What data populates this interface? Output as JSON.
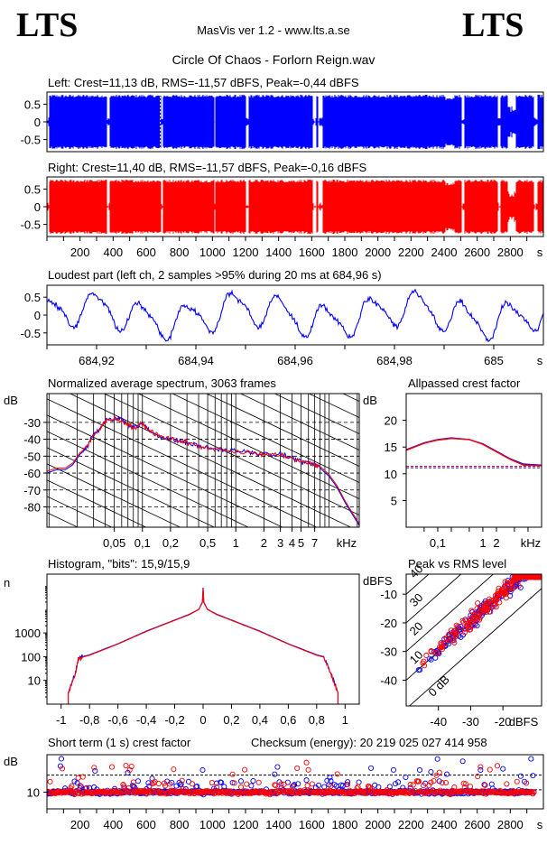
{
  "header": {
    "logo_left": "LTS",
    "logo_right": "LTS",
    "app": "MasVis ver 1.2 - www.lts.a.se",
    "file": "Circle Of Chaos - Forlorn Reign.wav"
  },
  "colors": {
    "left": "#0000ff",
    "right": "#ff0000"
  },
  "chart_data": [
    {
      "type": "line",
      "title": "Left: Crest=11,13 dB, RMS=-11,57 dBFS, Peak=-0,44 dBFS",
      "yticks": [
        "0.5",
        "0",
        "-0.5"
      ],
      "ylim": [
        -1,
        1
      ],
      "xlim": [
        0,
        3000
      ],
      "cursor_x": 684.96,
      "gaps": [
        [
          0,
          8
        ],
        [
          358,
          372
        ],
        [
          685,
          698
        ],
        [
          1005,
          1012
        ],
        [
          1195,
          1215
        ],
        [
          1600,
          1625
        ],
        [
          1635,
          1660
        ],
        [
          2500,
          2515
        ],
        [
          2720,
          2735
        ],
        [
          2940,
          2960
        ]
      ],
      "series": [
        {
          "name": "Left",
          "color": "#0000ff"
        }
      ]
    },
    {
      "type": "line",
      "title": "Right: Crest=11,40 dB, RMS=-11,57 dBFS, Peak=-0,16 dBFS",
      "yticks": [
        "0.5",
        "0",
        "-0.5"
      ],
      "ylim": [
        -1,
        1
      ],
      "xlim": [
        0,
        3000
      ],
      "x_ticks": [
        "200",
        "400",
        "600",
        "800",
        "1000",
        "1200",
        "1400",
        "1600",
        "1800",
        "2000",
        "2200",
        "2400",
        "2600",
        "2800"
      ],
      "x_unit": "s",
      "series": [
        {
          "name": "Right",
          "color": "#ff0000"
        }
      ]
    },
    {
      "type": "line",
      "title": "Loudest part (left  ch, 2 samples >95% during 20 ms at 684,96 s)",
      "yticks": [
        "0.5",
        "0",
        "-0.5"
      ],
      "ylim": [
        -1,
        1
      ],
      "xlim": [
        684.91,
        685.01
      ],
      "x_ticks": [
        "684,92",
        "684,94",
        "684,96",
        "684,98",
        "685"
      ],
      "x_tick_values": [
        684.92,
        684.94,
        684.96,
        684.98,
        685.0
      ],
      "x_unit": "s",
      "series": [
        {
          "name": "Left",
          "color": "#0000ff"
        }
      ]
    },
    {
      "type": "line",
      "title": "Normalized average spectrum, 3063 frames",
      "ylabel": "dB",
      "yticks": [
        "-30",
        "-40",
        "-50",
        "-60",
        "-70",
        "-80"
      ],
      "ytick_values": [
        -30,
        -40,
        -50,
        -60,
        -70,
        -80
      ],
      "ylim": [
        -92,
        -13
      ],
      "xlim": [
        0.0095,
        21
      ],
      "xscale": "log",
      "x_ticks": [
        "0,05",
        "0,1",
        "0,2",
        "0,5",
        "1",
        "2",
        "3",
        "4",
        "5",
        "7"
      ],
      "x_tick_values": [
        0.05,
        0.1,
        0.2,
        0.5,
        1,
        2,
        3,
        4,
        5,
        7
      ],
      "x_unit": "kHz",
      "series": [
        {
          "name": "Left",
          "color": "#0000ff",
          "x": [
            0.0095,
            0.012,
            0.015,
            0.018,
            0.022,
            0.026,
            0.03,
            0.035,
            0.04,
            0.05,
            0.06,
            0.07,
            0.08,
            0.1,
            0.12,
            0.15,
            0.2,
            0.25,
            0.3,
            0.4,
            0.5,
            0.7,
            1,
            1.5,
            2,
            3,
            4,
            5,
            6,
            7,
            8,
            10,
            12,
            15,
            21
          ],
          "y": [
            -60,
            -58,
            -58,
            -55,
            -48,
            -44,
            -37,
            -34,
            -29,
            -28,
            -28,
            -31,
            -33,
            -31,
            -35,
            -38,
            -40,
            -41,
            -42,
            -44,
            -45,
            -46,
            -47,
            -48,
            -49,
            -49,
            -51,
            -53,
            -54,
            -55,
            -57,
            -62,
            -68,
            -78,
            -91
          ]
        },
        {
          "name": "Right",
          "color": "#ff0000",
          "x": [
            0.0095,
            0.012,
            0.015,
            0.018,
            0.022,
            0.026,
            0.03,
            0.035,
            0.04,
            0.05,
            0.06,
            0.07,
            0.08,
            0.1,
            0.12,
            0.15,
            0.2,
            0.25,
            0.3,
            0.4,
            0.5,
            0.7,
            1,
            1.5,
            2,
            3,
            4,
            5,
            6,
            7,
            8,
            10,
            12,
            15,
            21
          ],
          "y": [
            -59,
            -57,
            -57,
            -54,
            -47,
            -44,
            -37,
            -34,
            -29,
            -28,
            -29,
            -31,
            -33,
            -31,
            -35,
            -38,
            -40,
            -41,
            -42,
            -44,
            -45,
            -46,
            -48,
            -48,
            -49,
            -49,
            -51,
            -53,
            -54,
            -55,
            -56,
            -61,
            -67,
            -77,
            -90
          ]
        }
      ]
    },
    {
      "type": "line",
      "title": "Allpassed crest factor",
      "ylabel": "dB",
      "yticks": [
        "20",
        "15",
        "10",
        "5"
      ],
      "ytick_values": [
        20,
        15,
        10,
        5
      ],
      "ylim": [
        0,
        25
      ],
      "xlim": [
        0.02,
        20
      ],
      "xscale": "log",
      "x_ticks": [
        "0,1",
        "1",
        "2"
      ],
      "x_tick_values": [
        0.1,
        1,
        2
      ],
      "x_unit": "kHz",
      "reference_lines": [
        {
          "y": 11.13,
          "color": "#0000ff"
        },
        {
          "y": 11.4,
          "color": "#ff0000"
        }
      ],
      "series": [
        {
          "name": "Left",
          "color": "#0000ff",
          "x": [
            0.02,
            0.05,
            0.1,
            0.2,
            0.5,
            1,
            2,
            4,
            8,
            20
          ],
          "y": [
            14.5,
            15.8,
            16.4,
            16.7,
            16.4,
            15.6,
            14.2,
            12.8,
            11.8,
            11.6
          ]
        },
        {
          "name": "Right",
          "color": "#ff0000",
          "x": [
            0.02,
            0.05,
            0.1,
            0.2,
            0.5,
            1,
            2,
            4,
            8,
            20
          ],
          "y": [
            14.4,
            15.7,
            16.3,
            16.6,
            16.4,
            15.5,
            14.1,
            12.7,
            11.6,
            11.5
          ]
        }
      ]
    },
    {
      "type": "line",
      "title": "Histogram, \"bits\": 15,9/15,9",
      "ylabel": "n",
      "yticks": [
        "1000",
        "100",
        "10"
      ],
      "ytick_values": [
        1000,
        100,
        10
      ],
      "yscale": "log",
      "ylim": [
        1,
        300000
      ],
      "xlim": [
        -1.1,
        1.1
      ],
      "x_ticks": [
        "-1",
        "-0,8",
        "-0,6",
        "-0,4",
        "-0,2",
        "0",
        "0,2",
        "0,4",
        "0,6",
        "0,8",
        "1"
      ],
      "x_tick_values": [
        -1,
        -0.8,
        -0.6,
        -0.4,
        -0.2,
        0,
        0.2,
        0.4,
        0.6,
        0.8,
        1
      ],
      "series": [
        {
          "name": "Left",
          "color": "#0000ff",
          "x": [
            -0.95,
            -0.95,
            -0.9,
            -0.88,
            -0.85,
            -0.8,
            -0.6,
            -0.4,
            -0.2,
            -0.1,
            -0.03,
            -0.005,
            0,
            0.005,
            0.03,
            0.1,
            0.2,
            0.4,
            0.6,
            0.8,
            0.85,
            0.9,
            0.95,
            0.95
          ],
          "y": [
            1,
            3,
            20,
            80,
            100,
            120,
            350,
            1200,
            3500,
            6000,
            10000,
            20000,
            80000,
            20000,
            10000,
            6000,
            3500,
            1200,
            350,
            120,
            100,
            20,
            3,
            1
          ]
        },
        {
          "name": "Right",
          "color": "#ff0000",
          "x": [
            -0.95,
            -0.95,
            -0.9,
            -0.88,
            -0.85,
            -0.8,
            -0.6,
            -0.4,
            -0.2,
            -0.1,
            -0.03,
            -0.005,
            0,
            0.005,
            0.03,
            0.1,
            0.2,
            0.4,
            0.6,
            0.8,
            0.85,
            0.9,
            0.95,
            0.95
          ],
          "y": [
            1,
            3,
            18,
            75,
            95,
            115,
            340,
            1150,
            3400,
            5800,
            9800,
            19000,
            78000,
            19000,
            9800,
            5800,
            3400,
            1150,
            340,
            115,
            95,
            18,
            3,
            1
          ]
        }
      ]
    },
    {
      "type": "scatter",
      "title": "Peak vs RMS level",
      "ylabel": "dBFS",
      "xlabel": "dBFS",
      "xlim": [
        -50,
        -8
      ],
      "ylim": [
        -49,
        -3
      ],
      "xticks": [
        "-40",
        "-30",
        "-20"
      ],
      "xtick_values": [
        -40,
        -30,
        -20
      ],
      "yticks": [
        "-10",
        "-20",
        "-30",
        "-40"
      ],
      "ytick_values": [
        -10,
        -20,
        -30,
        -40
      ],
      "diagonal_labels": [
        "40",
        "30",
        "20",
        "10",
        "0 dB"
      ],
      "series": [
        {
          "name": "Left",
          "color": "#0000ff",
          "count": 180
        },
        {
          "name": "Right",
          "color": "#ff0000",
          "count": 200
        }
      ]
    },
    {
      "type": "scatter",
      "title": "Short term (1 s) crest factor",
      "annotation": "Checksum (energy):  20 219 025 027 414 958",
      "ylabel": "dB",
      "yticks": [
        "10"
      ],
      "ytick_values": [
        10
      ],
      "ylim": [
        2,
        28
      ],
      "xlim": [
        0,
        3000
      ],
      "x_ticks": [
        "200",
        "400",
        "600",
        "800",
        "1000",
        "1200",
        "1400",
        "1600",
        "1800",
        "2000",
        "2200",
        "2400",
        "2600",
        "2800"
      ],
      "x_unit": "s",
      "reference_lines": [
        {
          "y": 11.13,
          "color": "#000000"
        },
        {
          "y": 18.2,
          "color": "#000000"
        }
      ],
      "series": [
        {
          "name": "Left",
          "color": "#0000ff",
          "count": 520
        },
        {
          "name": "Right",
          "color": "#ff0000",
          "count": 520
        }
      ]
    }
  ]
}
